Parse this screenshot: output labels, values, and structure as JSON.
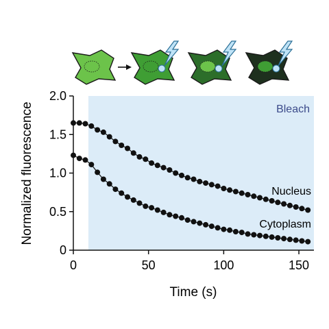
{
  "colors": {
    "bleach_region": "#dcecf8",
    "bleach_label": "#3b4a8a",
    "markers": "#111111",
    "cell_bright": "#6cc34a",
    "cell_mid": "#3f9e34",
    "cell_dark": "#2c6e2a",
    "cell_darkest": "#1e301e",
    "bolt": "#bfe3f7",
    "bolt_outline": "#2a6f96"
  },
  "illustration": {
    "cells": [
      "cell-before-bleach-icon",
      "cell-bleach-stage-1-icon",
      "cell-bleach-stage-2-icon",
      "cell-bleach-stage-3-icon"
    ],
    "icons": [
      "arrow-right-icon",
      "lightning-bolt-icon"
    ]
  },
  "chart_data": {
    "type": "scatter",
    "xlabel": "Time (s)",
    "ylabel": "Normalized fluorescence",
    "xlim": [
      0,
      160
    ],
    "ylim": [
      0,
      2.0
    ],
    "xticks": [
      "0",
      "50",
      "100",
      "150"
    ],
    "yticks": [
      "0",
      "0.5",
      "1.0",
      "1.5",
      "2.0"
    ],
    "shaded_region": {
      "label": "Bleach",
      "x_start": 10,
      "x_end": 160
    },
    "grid": false,
    "series": [
      {
        "name": "Nucleus",
        "x": [
          0,
          4,
          8,
          12,
          16,
          20,
          24,
          28,
          32,
          36,
          40,
          44,
          48,
          52,
          56,
          60,
          64,
          68,
          72,
          76,
          80,
          84,
          88,
          92,
          96,
          100,
          104,
          108,
          112,
          116,
          120,
          124,
          128,
          132,
          136,
          140,
          144,
          148,
          152,
          156
        ],
        "y": [
          1.65,
          1.65,
          1.64,
          1.61,
          1.56,
          1.53,
          1.47,
          1.41,
          1.36,
          1.32,
          1.26,
          1.21,
          1.18,
          1.13,
          1.1,
          1.07,
          1.04,
          1.0,
          0.97,
          0.94,
          0.92,
          0.89,
          0.87,
          0.85,
          0.83,
          0.8,
          0.78,
          0.76,
          0.74,
          0.72,
          0.7,
          0.68,
          0.66,
          0.64,
          0.62,
          0.6,
          0.58,
          0.56,
          0.54,
          0.52
        ]
      },
      {
        "name": "Cytoplasm",
        "x": [
          0,
          4,
          8,
          12,
          16,
          20,
          24,
          28,
          32,
          36,
          40,
          44,
          48,
          52,
          56,
          60,
          64,
          68,
          72,
          76,
          80,
          84,
          88,
          92,
          96,
          100,
          104,
          108,
          112,
          116,
          120,
          124,
          128,
          132,
          136,
          140,
          144,
          148,
          152,
          156
        ],
        "y": [
          1.23,
          1.19,
          1.17,
          1.11,
          1.01,
          0.92,
          0.86,
          0.79,
          0.74,
          0.69,
          0.65,
          0.61,
          0.57,
          0.55,
          0.52,
          0.49,
          0.46,
          0.44,
          0.42,
          0.39,
          0.37,
          0.35,
          0.33,
          0.31,
          0.29,
          0.27,
          0.26,
          0.24,
          0.23,
          0.21,
          0.2,
          0.19,
          0.18,
          0.17,
          0.16,
          0.15,
          0.14,
          0.13,
          0.12,
          0.11
        ]
      }
    ]
  }
}
